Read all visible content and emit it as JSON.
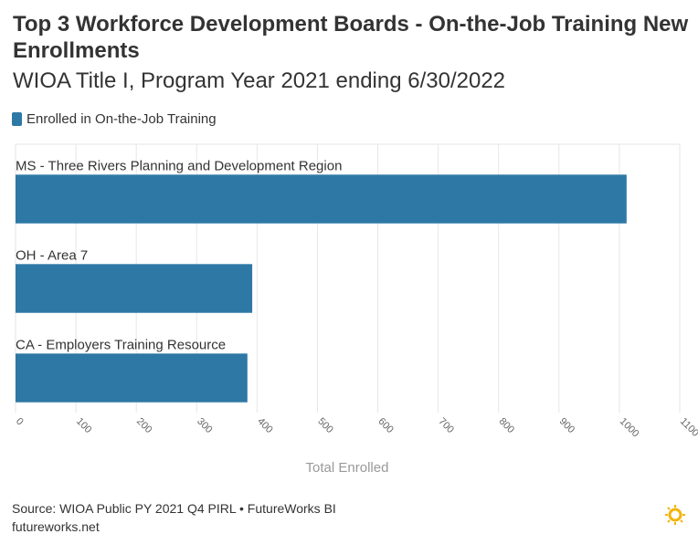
{
  "header": {
    "title": "Top 3 Workforce Development Boards - On-the-Job Training New Enrollments",
    "subtitle": "WIOA Title I, Program Year 2021 ending 6/30/2022"
  },
  "legend": {
    "label": "Enrolled in On-the-Job Training",
    "color": "#2e78a5"
  },
  "footer": {
    "source": "Source: WIOA Public PY 2021 Q4 PIRL • FutureWorks BI",
    "url": "futureworks.net",
    "logo_icon": "sun-logo-icon",
    "logo_color": "#f2b50c"
  },
  "chart_data": {
    "type": "bar",
    "orientation": "horizontal",
    "categories": [
      "MS - Three Rivers Planning and Development Region",
      "OH - Area 7",
      "CA - Employers Training Resource"
    ],
    "series": [
      {
        "name": "Enrolled in On-the-Job Training",
        "values": [
          1012,
          392,
          384
        ]
      }
    ],
    "xlabel": "Total Enrolled",
    "ylabel": "",
    "xlim": [
      0,
      1100
    ],
    "xticks": [
      0,
      100,
      200,
      300,
      400,
      500,
      600,
      700,
      800,
      900,
      1000,
      1100
    ],
    "grid": true,
    "legend_position": "top-left",
    "bar_color": "#2e78a5",
    "grid_color": "#e6e6e6"
  }
}
